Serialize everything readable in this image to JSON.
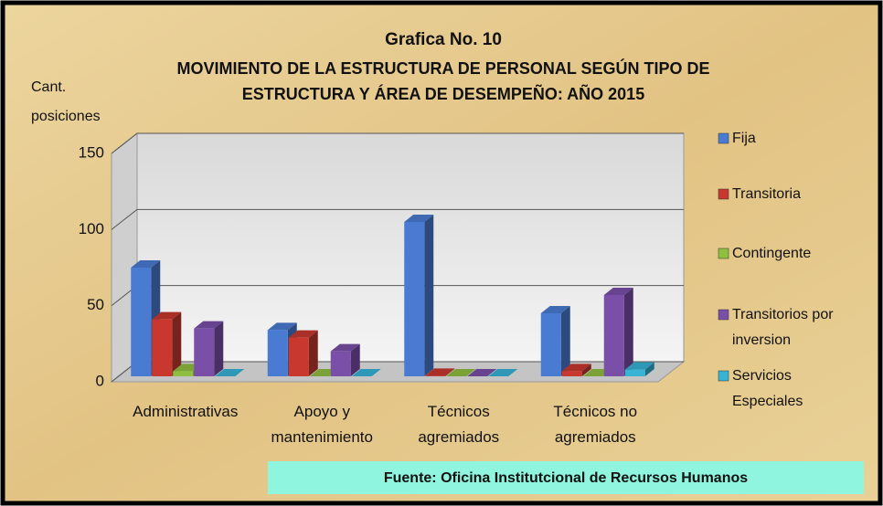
{
  "chart_data": {
    "type": "bar3d",
    "title": "Grafica No. 10",
    "subtitle": [
      "MOVIMIENTO DE LA ESTRUCTURA DE PERSONAL SEGÚN  TIPO DE",
      "ESTRUCTURA Y ÁREA DE DESEMPEÑO:  AÑO 2015"
    ],
    "y_label": [
      "Cant.",
      "posiciones"
    ],
    "categories": [
      "Administrativas",
      "Apoyo y mantenimiento",
      "Técnicos agremiados",
      "Técnicos no agremiados"
    ],
    "series": [
      {
        "name": "Fija",
        "color": "#4a7bd2",
        "values": [
          75,
          34,
          105,
          45
        ]
      },
      {
        "name": "Transitoria",
        "color": "#c8382e",
        "values": [
          41,
          29,
          4,
          7
        ]
      },
      {
        "name": "Contingente",
        "color": "#8fbf3f",
        "values": [
          7,
          1,
          0,
          1
        ]
      },
      {
        "name": "Transitorios por inversion",
        "color": "#7a4fa8",
        "values": [
          35,
          20,
          0,
          57
        ]
      },
      {
        "name": "Servicios Especiales",
        "color": "#37b3d6",
        "values": [
          0,
          0,
          0,
          8
        ]
      }
    ],
    "ylim": [
      0,
      150
    ],
    "yticks": [
      0,
      50,
      100,
      150
    ],
    "grid": true,
    "legend": "right",
    "source": "Fuente: Oficina Institutcional de Recursos Humanos"
  }
}
